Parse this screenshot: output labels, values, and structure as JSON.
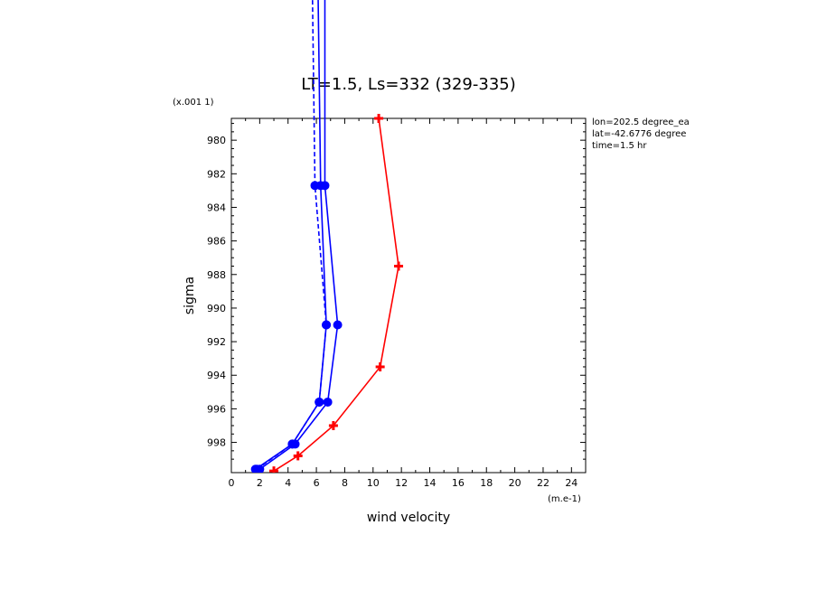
{
  "chart_data": {
    "type": "line",
    "title": "LT=1.5, Ls=332 (329-335)",
    "xlabel": "wind velocity",
    "ylabel": "sigma",
    "x_unit": "(m.e-1)",
    "y_unit": "(x.001 1)",
    "xlim": [
      0,
      25
    ],
    "ylim": [
      999.8,
      978.7
    ],
    "x_ticks": [
      0,
      2,
      4,
      6,
      8,
      10,
      12,
      14,
      16,
      18,
      20,
      22,
      24
    ],
    "y_ticks": [
      980,
      982,
      984,
      986,
      988,
      990,
      992,
      994,
      996,
      998
    ],
    "info": [
      "lon=202.5 degree_ea",
      "lat=-42.6776 degree",
      "time=1.5 hr"
    ],
    "series": [
      {
        "color": "#ff0000",
        "dash": "solid",
        "marker": "plus",
        "x": [
          3.0,
          4.7,
          7.2,
          10.5,
          11.8,
          10.4
        ],
        "y": [
          999.7,
          998.8,
          997.0,
          993.5,
          987.5,
          978.7
        ]
      },
      {
        "color": "#0000ff",
        "dash": "solid",
        "marker": "circle",
        "x": [
          2.0,
          4.5,
          6.8,
          7.5,
          6.6,
          6.6
        ],
        "y": [
          999.6,
          998.1,
          995.6,
          991.0,
          982.7,
          970.0
        ]
      },
      {
        "color": "#0000ff",
        "dash": "solid",
        "marker": "circle",
        "x": [
          1.7,
          4.3,
          6.2,
          6.7,
          6.3,
          6.1
        ],
        "y": [
          999.6,
          998.1,
          995.6,
          991.0,
          982.7,
          970.0
        ]
      },
      {
        "color": "#0000ff",
        "dash": "dashed",
        "marker": "circle",
        "x": [
          1.8,
          4.3,
          6.2,
          6.7,
          5.9,
          5.7
        ],
        "y": [
          999.6,
          998.1,
          995.6,
          991.0,
          982.7,
          970.0
        ]
      }
    ]
  }
}
